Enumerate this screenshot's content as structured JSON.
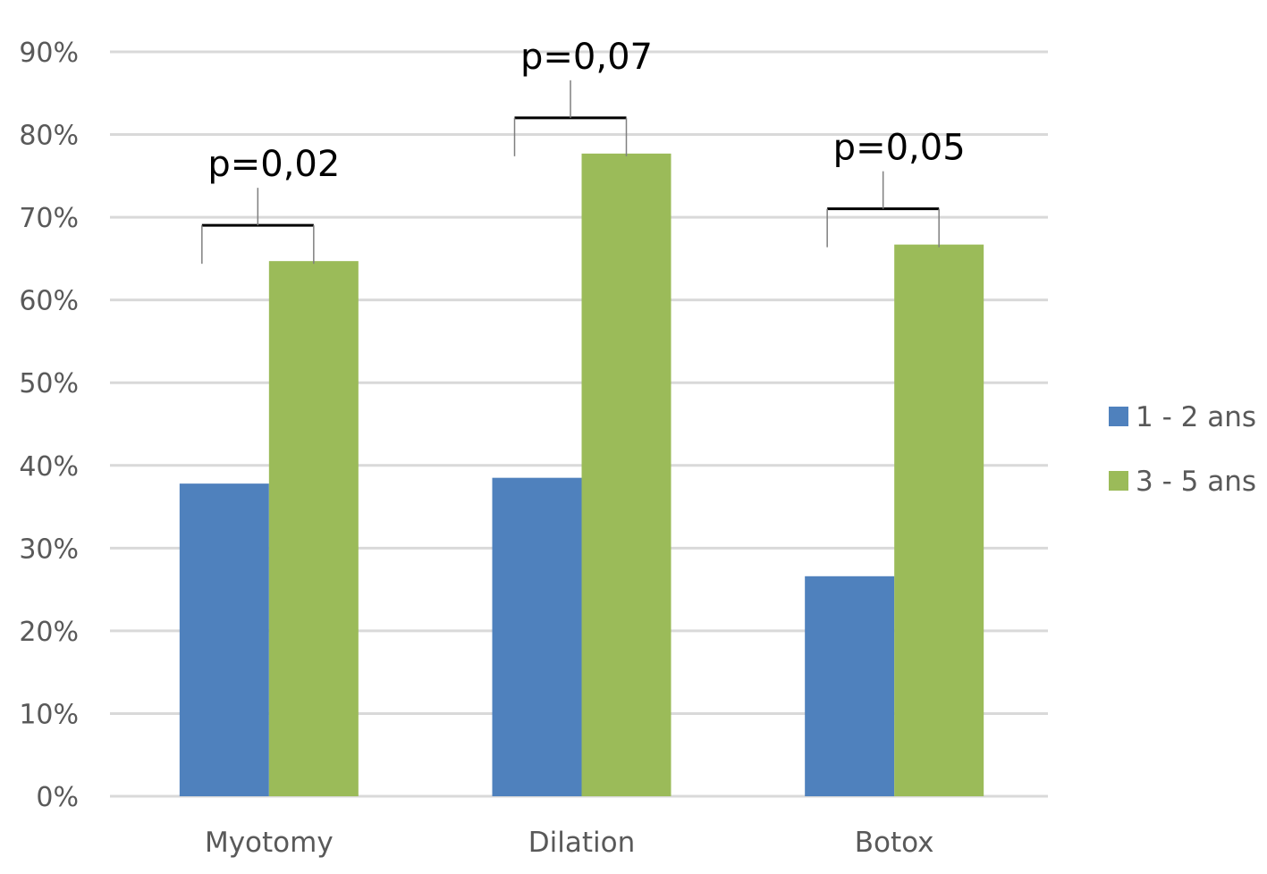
{
  "chart_data": {
    "type": "bar",
    "categories": [
      "Myotomy",
      "Dilation",
      "Botox"
    ],
    "series": [
      {
        "name": "1 - 2 ans",
        "color": "#4F81BD",
        "values": [
          0.378,
          0.385,
          0.266
        ]
      },
      {
        "name": "3 - 5 ans",
        "color": "#9BBB59",
        "values": [
          0.647,
          0.777,
          0.667
        ]
      }
    ],
    "ylim": [
      0,
      0.9
    ],
    "yticks": [
      {
        "value": 0.0,
        "label": "0%"
      },
      {
        "value": 0.1,
        "label": "10%"
      },
      {
        "value": 0.2,
        "label": "20%"
      },
      {
        "value": 0.3,
        "label": "30%"
      },
      {
        "value": 0.4,
        "label": "40%"
      },
      {
        "value": 0.5,
        "label": "50%"
      },
      {
        "value": 0.6,
        "label": "60%"
      },
      {
        "value": 0.7,
        "label": "70%"
      },
      {
        "value": 0.8,
        "label": "80%"
      },
      {
        "value": 0.9,
        "label": "90%"
      }
    ],
    "grid": true,
    "legend_position": "right",
    "annotations": [
      {
        "category": "Myotomy",
        "text": "p=0,02"
      },
      {
        "category": "Dilation",
        "text": "p=0,07"
      },
      {
        "category": "Botox",
        "text": "p=0,05"
      }
    ],
    "colors": {
      "grid": "#D9D9D9",
      "axis_text": "#595959",
      "annotation": "#000000"
    }
  }
}
